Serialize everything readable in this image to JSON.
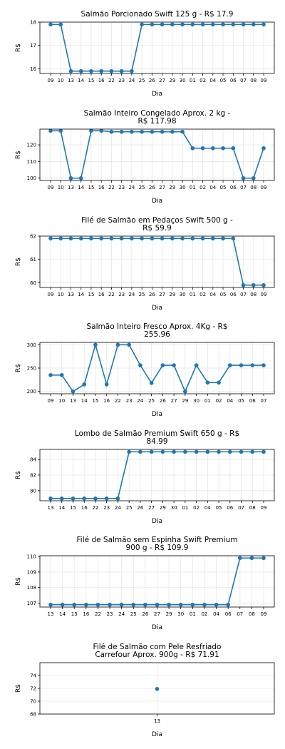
{
  "chart_data": [
    {
      "type": "line",
      "title": [
        "Salmão Porcionado Swift 125 g - R$ 17.9"
      ],
      "xlabel": "Dia",
      "ylabel": "R$",
      "grid": true,
      "color": "#1f77b4",
      "categories": [
        "09",
        "10",
        "13",
        "14",
        "15",
        "16",
        "22",
        "23",
        "24",
        "25",
        "26",
        "27",
        "29",
        "30",
        "01",
        "02",
        "04",
        "05",
        "06",
        "07",
        "08",
        "09"
      ],
      "values": [
        17.9,
        17.9,
        15.9,
        15.9,
        15.9,
        15.9,
        15.9,
        15.9,
        15.9,
        17.9,
        17.9,
        17.9,
        17.9,
        17.9,
        17.9,
        17.9,
        17.9,
        17.9,
        17.9,
        17.9,
        17.9,
        17.9
      ],
      "ylim": [
        15.8,
        18.0
      ],
      "yticks": [
        16,
        17,
        18
      ]
    },
    {
      "type": "line",
      "title": [
        "Salmão Inteiro Congelado Aprox. 2 kg -",
        "R$ 117.98"
      ],
      "xlabel": "Dia",
      "ylabel": "R$",
      "grid": true,
      "color": "#1f77b4",
      "categories": [
        "09",
        "10",
        "13",
        "14",
        "15",
        "16",
        "22",
        "23",
        "24",
        "25",
        "26",
        "27",
        "29",
        "30",
        "01",
        "02",
        "04",
        "05",
        "06",
        "07",
        "08",
        "09"
      ],
      "values": [
        128.5,
        128.5,
        99.9,
        99.9,
        128.5,
        128.5,
        127.9,
        127.9,
        127.9,
        127.9,
        127.9,
        127.9,
        127.9,
        127.9,
        117.98,
        117.98,
        117.98,
        117.98,
        117.98,
        99.9,
        99.9,
        117.98
      ],
      "ylim": [
        98.5,
        129.5
      ],
      "yticks": [
        100,
        110,
        120
      ]
    },
    {
      "type": "line",
      "title": [
        "Filé de Salmão em Pedaços Swift 500 g -",
        "R$ 59.9"
      ],
      "xlabel": "Dia",
      "ylabel": "R$",
      "grid": true,
      "color": "#1f77b4",
      "categories": [
        "09",
        "10",
        "13",
        "14",
        "15",
        "16",
        "22",
        "23",
        "24",
        "25",
        "26",
        "27",
        "29",
        "30",
        "01",
        "02",
        "04",
        "05",
        "06",
        "07",
        "08",
        "09"
      ],
      "values": [
        61.9,
        61.9,
        61.9,
        61.9,
        61.9,
        61.9,
        61.9,
        61.9,
        61.9,
        61.9,
        61.9,
        61.9,
        61.9,
        61.9,
        61.9,
        61.9,
        61.9,
        61.9,
        61.9,
        59.9,
        59.9,
        59.9
      ],
      "ylim": [
        59.8,
        62.0
      ],
      "yticks": [
        60,
        61,
        62
      ]
    },
    {
      "type": "line",
      "title": [
        "Salmão Inteiro Fresco Aprox. 4Kg - R$",
        "255.96"
      ],
      "xlabel": "Dia",
      "ylabel": "R$",
      "grid": true,
      "color": "#1f77b4",
      "categories": [
        "09",
        "10",
        "13",
        "14",
        "15",
        "16",
        "22",
        "23",
        "24",
        "25",
        "26",
        "27",
        "29",
        "30",
        "01",
        "02",
        "04",
        "05",
        "06",
        "07"
      ],
      "values": [
        235,
        235,
        199.9,
        215,
        299.9,
        215,
        299.9,
        299.9,
        255.96,
        218,
        255.96,
        255.96,
        199.9,
        255.96,
        219,
        219,
        255.96,
        255.96,
        255.96,
        255.96
      ],
      "ylim": [
        195,
        305
      ],
      "yticks": [
        200,
        250,
        300
      ]
    },
    {
      "type": "line",
      "title": [
        "Lombo de Salmão Premium Swift 650 g - R$",
        "84.99"
      ],
      "xlabel": "Dia",
      "ylabel": "R$",
      "grid": true,
      "color": "#1f77b4",
      "categories": [
        "13",
        "14",
        "15",
        "16",
        "22",
        "23",
        "24",
        "25",
        "26",
        "27",
        "29",
        "30",
        "01",
        "02",
        "04",
        "05",
        "06",
        "07",
        "08",
        "09"
      ],
      "values": [
        78.99,
        78.99,
        78.99,
        78.99,
        78.99,
        78.99,
        78.99,
        84.99,
        84.99,
        84.99,
        84.99,
        84.99,
        84.99,
        84.99,
        84.99,
        84.99,
        84.99,
        84.99,
        84.99,
        84.99
      ],
      "ylim": [
        78.7,
        85.3
      ],
      "yticks": [
        80,
        82,
        84
      ]
    },
    {
      "type": "line",
      "title": [
        "Filé de Salmão sem Espinha Swift Premium",
        "900 g - R$ 109.9"
      ],
      "xlabel": "Dia",
      "ylabel": "R$",
      "grid": true,
      "color": "#1f77b4",
      "categories": [
        "13",
        "14",
        "15",
        "16",
        "22",
        "23",
        "24",
        "25",
        "26",
        "27",
        "29",
        "30",
        "01",
        "02",
        "04",
        "06",
        "07",
        "08",
        "09"
      ],
      "values": [
        106.9,
        106.9,
        106.9,
        106.9,
        106.9,
        106.9,
        106.9,
        106.9,
        106.9,
        106.9,
        106.9,
        106.9,
        106.9,
        106.9,
        106.9,
        106.9,
        109.9,
        109.9,
        109.9
      ],
      "ylim": [
        106.75,
        110.05
      ],
      "yticks": [
        107,
        108,
        109,
        110
      ]
    },
    {
      "type": "line",
      "title": [
        "Filé de Salmão com Pele Resfriado",
        "Carrefour Aprox. 900g - R$ 71.91"
      ],
      "xlabel": "Dia",
      "ylabel": "R$",
      "grid": true,
      "color": "#1f77b4",
      "categories": [
        "13"
      ],
      "values": [
        71.91
      ],
      "ylim": [
        68,
        76
      ],
      "yticks": [
        68,
        70,
        72,
        74
      ]
    }
  ]
}
